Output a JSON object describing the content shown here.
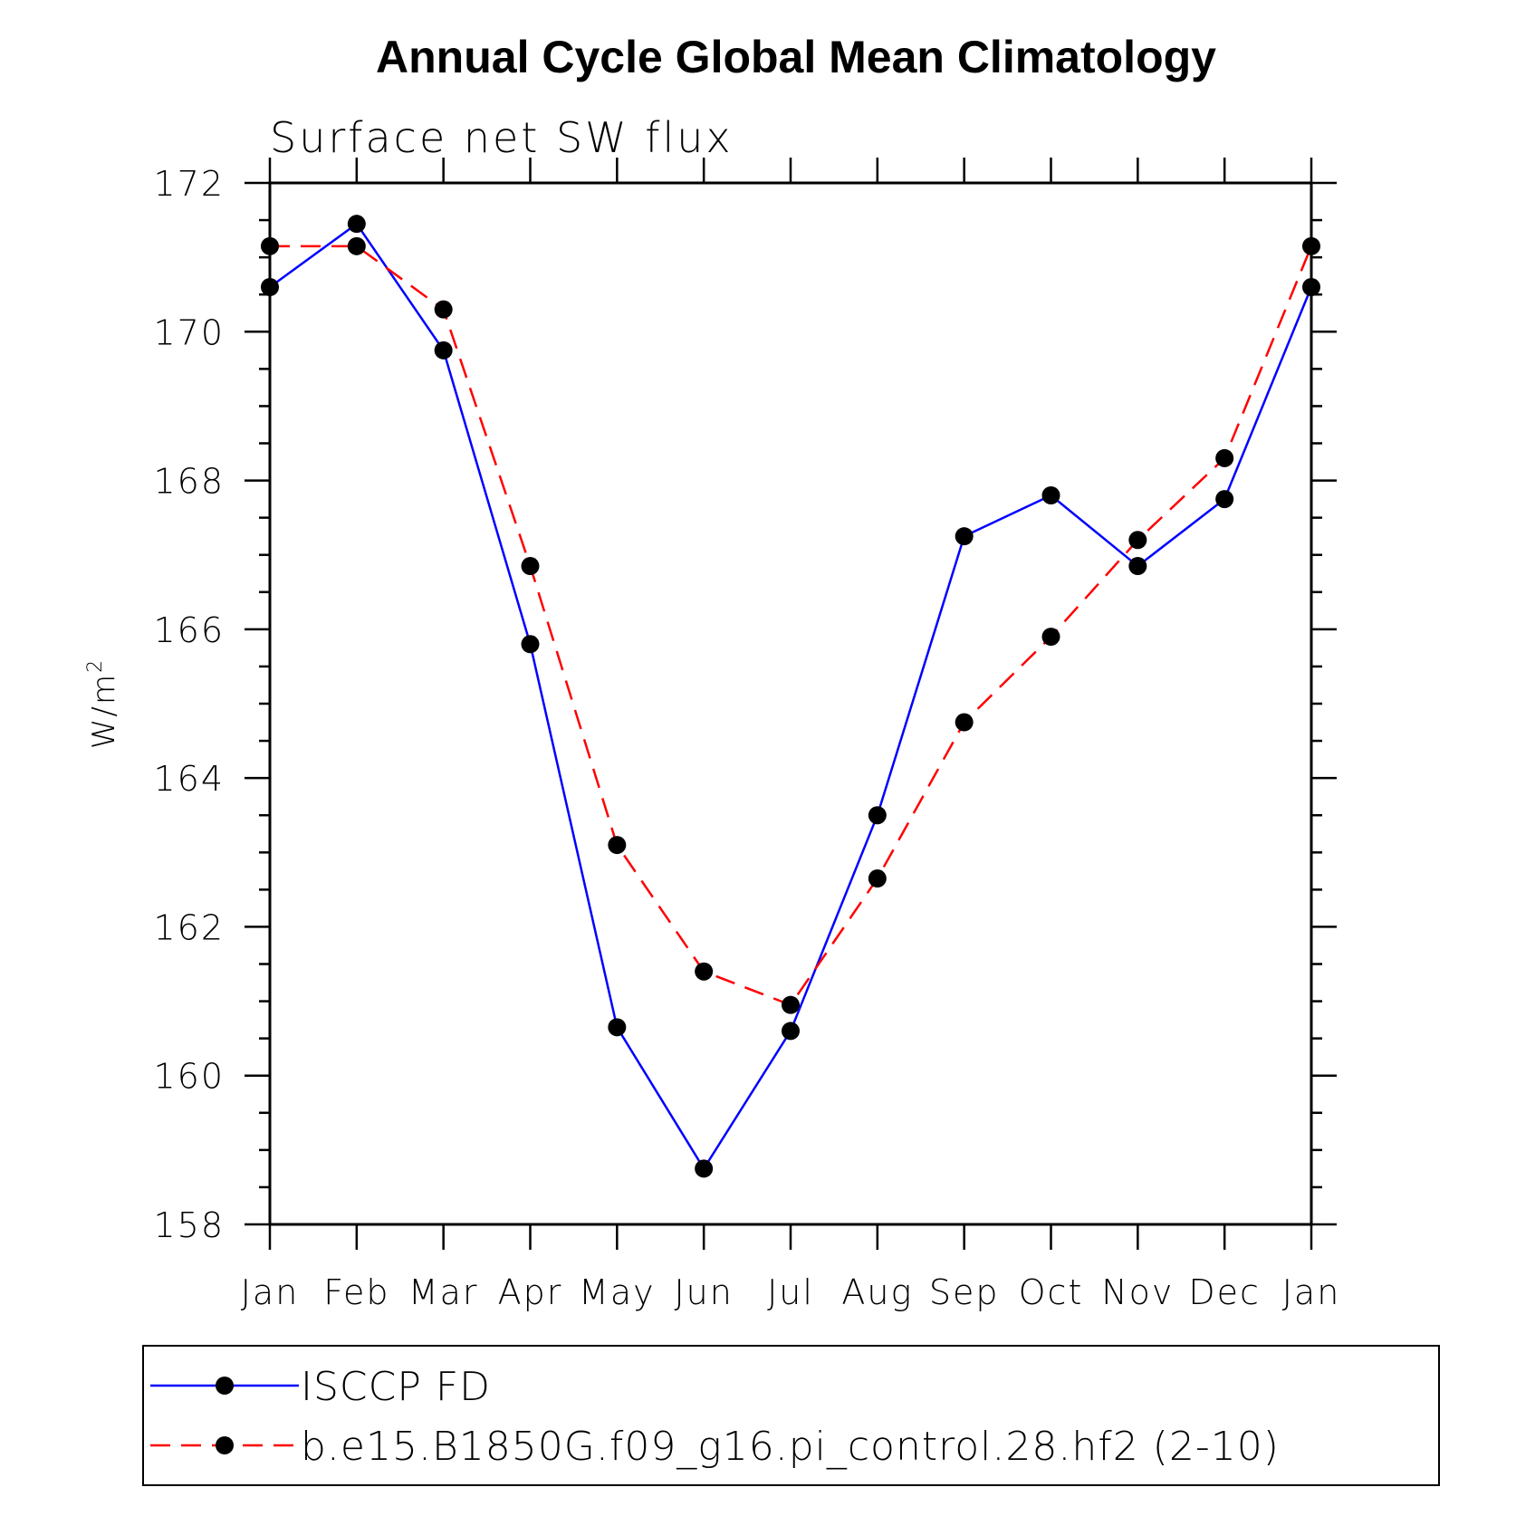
{
  "chart_data": {
    "type": "line",
    "title": "Annual Cycle Global Mean Climatology",
    "subtitle": "Surface net SW flux",
    "ylabel": "W/m",
    "ylabel_superscript": "2",
    "xlabel": "",
    "categories": [
      "Jan",
      "Feb",
      "Mar",
      "Apr",
      "May",
      "Jun",
      "Jul",
      "Aug",
      "Sep",
      "Oct",
      "Nov",
      "Dec",
      "Jan"
    ],
    "ylim": [
      158,
      172
    ],
    "yticks": [
      "158",
      "160",
      "162",
      "164",
      "166",
      "168",
      "170",
      "172"
    ],
    "grid": false,
    "legend_position": "bottom",
    "series": [
      {
        "name": "ISCCP FD",
        "color": "#0000ff",
        "dash": "solid",
        "values": [
          170.6,
          171.45,
          169.75,
          165.8,
          160.65,
          158.75,
          160.6,
          163.5,
          167.25,
          167.8,
          166.85,
          167.75,
          170.6
        ]
      },
      {
        "name": "b.e15.B1850G.f09_g16.pi_control.28.hf2 (2-10)",
        "color": "#ff0000",
        "dash": "dashed",
        "values": [
          171.15,
          171.15,
          170.3,
          166.85,
          163.1,
          161.4,
          160.95,
          162.65,
          164.75,
          165.9,
          167.2,
          168.3,
          171.15
        ]
      }
    ]
  }
}
